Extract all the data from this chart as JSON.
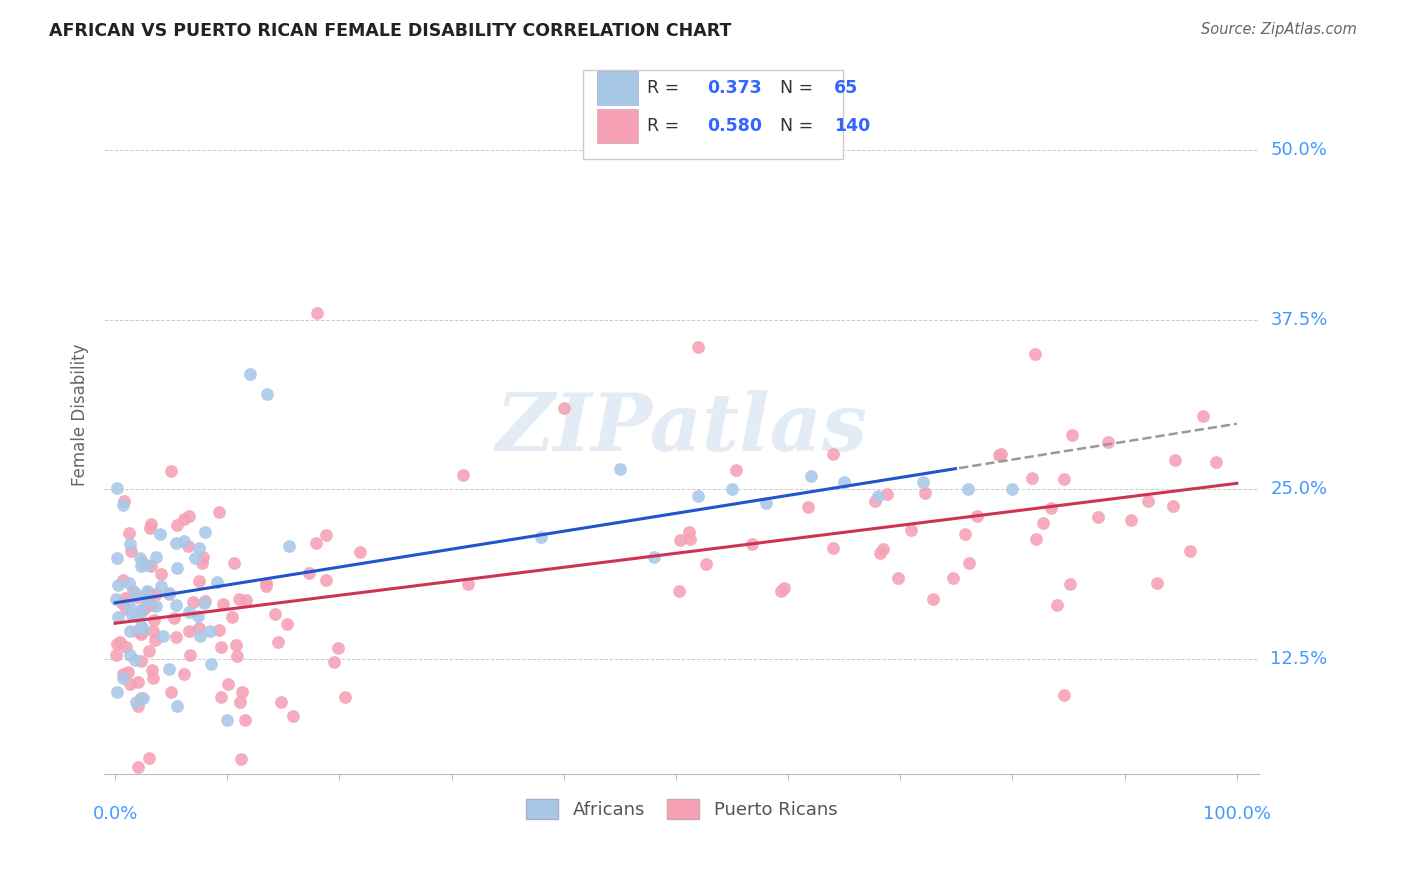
{
  "title": "AFRICAN VS PUERTO RICAN FEMALE DISABILITY CORRELATION CHART",
  "source": "Source: ZipAtlas.com",
  "ylabel": "Female Disability",
  "ytick_labels": [
    "12.5%",
    "25.0%",
    "37.5%",
    "50.0%"
  ],
  "ytick_values": [
    0.125,
    0.25,
    0.375,
    0.5
  ],
  "xlim": [
    -0.01,
    1.02
  ],
  "ylim": [
    0.04,
    0.57
  ],
  "african_color": "#a8c8e8",
  "puerto_rican_color": "#f5a0b5",
  "african_line_color": "#2255cc",
  "puerto_rican_line_color": "#cc3355",
  "african_R": 0.373,
  "african_N": 65,
  "puerto_rican_R": 0.58,
  "puerto_rican_N": 140,
  "watermark": "ZIPatlas",
  "legend_label_1": "Africans",
  "legend_label_2": "Puerto Ricans",
  "african_line_intercept": 0.168,
  "african_line_slope": 0.085,
  "puerto_rican_line_intercept": 0.148,
  "puerto_rican_line_slope": 0.105,
  "dashed_line_start": 0.75
}
